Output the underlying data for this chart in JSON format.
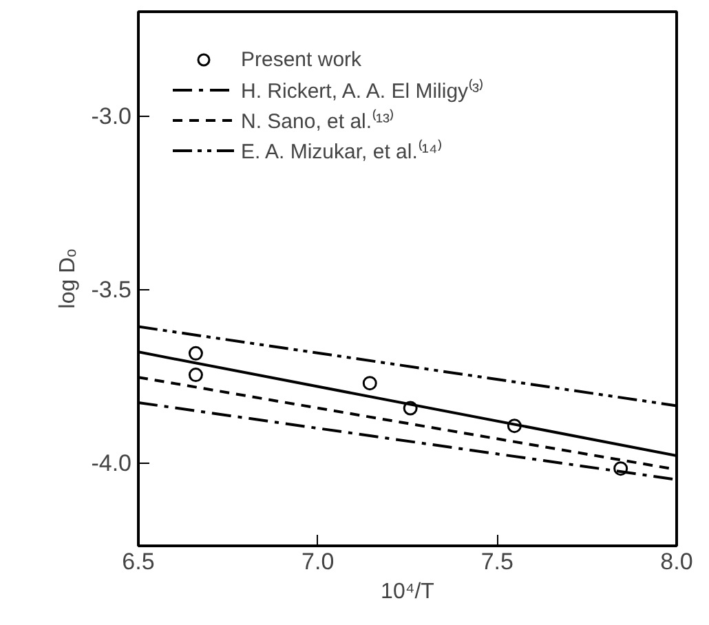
{
  "chart_data": {
    "type": "line",
    "xlabel": "10⁴/T",
    "ylabel": "log Dₒ",
    "xlim": [
      6.5,
      8.0
    ],
    "ylim": [
      -4.24,
      -2.7
    ],
    "xticks": [
      6.5,
      {
        "value": 7,
        "label": "7.0"
      },
      7.5,
      {
        "value": 8,
        "label": "8.0"
      }
    ],
    "yticks": [
      {
        "value": -3,
        "label": "-3.0"
      },
      -3.5,
      {
        "value": -4,
        "label": "-4.0"
      }
    ],
    "grid": false,
    "legend": "top left",
    "series": [
      {
        "name": "Present work",
        "type": "scatter",
        "marker": "circle",
        "color": "#000000",
        "x": [
          6.66,
          6.66,
          7.145,
          7.258,
          7.548,
          7.844
        ],
        "values": [
          -3.685,
          -3.747,
          -3.771,
          -3.843,
          -3.894,
          -4.017
        ]
      },
      {
        "line_style": "solid",
        "color": "#000000",
        "x": [
          6.5,
          8.0
        ],
        "values": [
          -3.681,
          -3.98
        ]
      },
      {
        "name": "H. Rickert, A. A. El Miligy⁽³⁾",
        "type": "line",
        "line_style": "dashdot",
        "color": "#000000",
        "x": [
          6.5,
          8.0
        ],
        "values": [
          -3.827,
          -4.049
        ]
      },
      {
        "name": "N. Sano, et al.⁽¹³⁾",
        "type": "line",
        "line_style": "dashed",
        "color": "#000000",
        "x": [
          6.5,
          8.0
        ],
        "values": [
          -3.754,
          -4.02
        ]
      },
      {
        "name": "E. A. Mizukar, et al.⁽¹⁴⁾",
        "type": "line",
        "line_style": "dashdotdot",
        "color": "#000000",
        "x": [
          6.5,
          8.0
        ],
        "values": [
          -3.608,
          -3.836
        ]
      }
    ]
  }
}
